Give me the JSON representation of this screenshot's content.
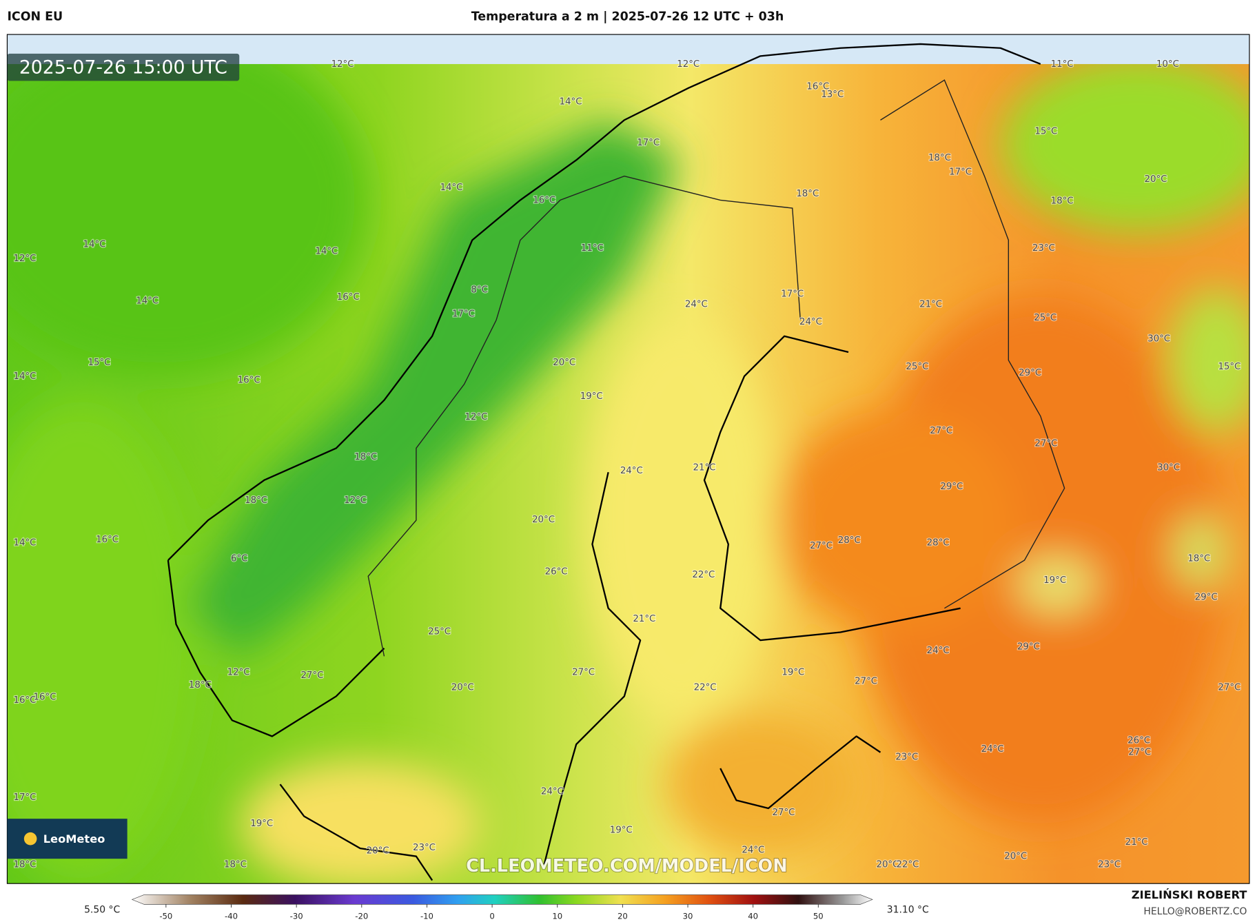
{
  "header": {
    "model": "ICON EU",
    "title": "Temperatura a 2 m | 2025-07-26 12 UTC + 03h",
    "timestamp": "2025-07-26 15:00 UTC"
  },
  "map": {
    "labels": [
      "12°C",
      "12°C",
      "11°C",
      "10°C",
      "16°C",
      "13°C",
      "14°C",
      "15°C",
      "17°C",
      "18°C",
      "17°C",
      "20°C",
      "14°C",
      "18°C",
      "16°C",
      "18°C",
      "14°C",
      "12°C",
      "14°C",
      "11°C",
      "23°C",
      "8°C",
      "16°C",
      "14°C",
      "17°C",
      "24°C",
      "21°C",
      "17°C",
      "24°C",
      "25°C",
      "30°C",
      "15°C",
      "20°C",
      "25°C",
      "15°C",
      "14°C",
      "16°C",
      "29°C",
      "19°C",
      "12°C",
      "27°C",
      "27°C",
      "18°C",
      "21°C",
      "24°C",
      "30°C",
      "29°C",
      "18°C",
      "12°C",
      "20°C",
      "14°C",
      "16°C",
      "28°C",
      "27°C",
      "28°C",
      "18°C",
      "6°C",
      "26°C",
      "22°C",
      "19°C",
      "29°C",
      "21°C",
      "25°C",
      "29°C",
      "24°C",
      "19°C",
      "12°C",
      "27°C",
      "27°C",
      "27°C",
      "20°C",
      "18°C",
      "22°C",
      "27°C",
      "16°C",
      "16°C",
      "26°C",
      "27°C",
      "24°C",
      "23°C",
      "17°C",
      "24°C",
      "27°C",
      "19°C",
      "19°C",
      "24°C",
      "21°C",
      "20°C",
      "23°C",
      "20°C",
      "18°C",
      "18°C",
      "20°C",
      "22°C",
      "23°C"
    ]
  },
  "colorbar": {
    "min_label": "5.50 °C",
    "max_label": "31.10 °C",
    "lim": [
      -55.2,
      58.3
    ],
    "ticks": [
      -50,
      -40,
      -30,
      -20,
      -10,
      0,
      10,
      20,
      30,
      40,
      50
    ]
  },
  "watermark": "CL.LEOMETEO.COM/MODEL/ICON",
  "logo": "LeoMeteo",
  "footer": {
    "author": "ZIELIŃSKI ROBERT",
    "email": "HELLO@ROBERTZ.CO"
  }
}
